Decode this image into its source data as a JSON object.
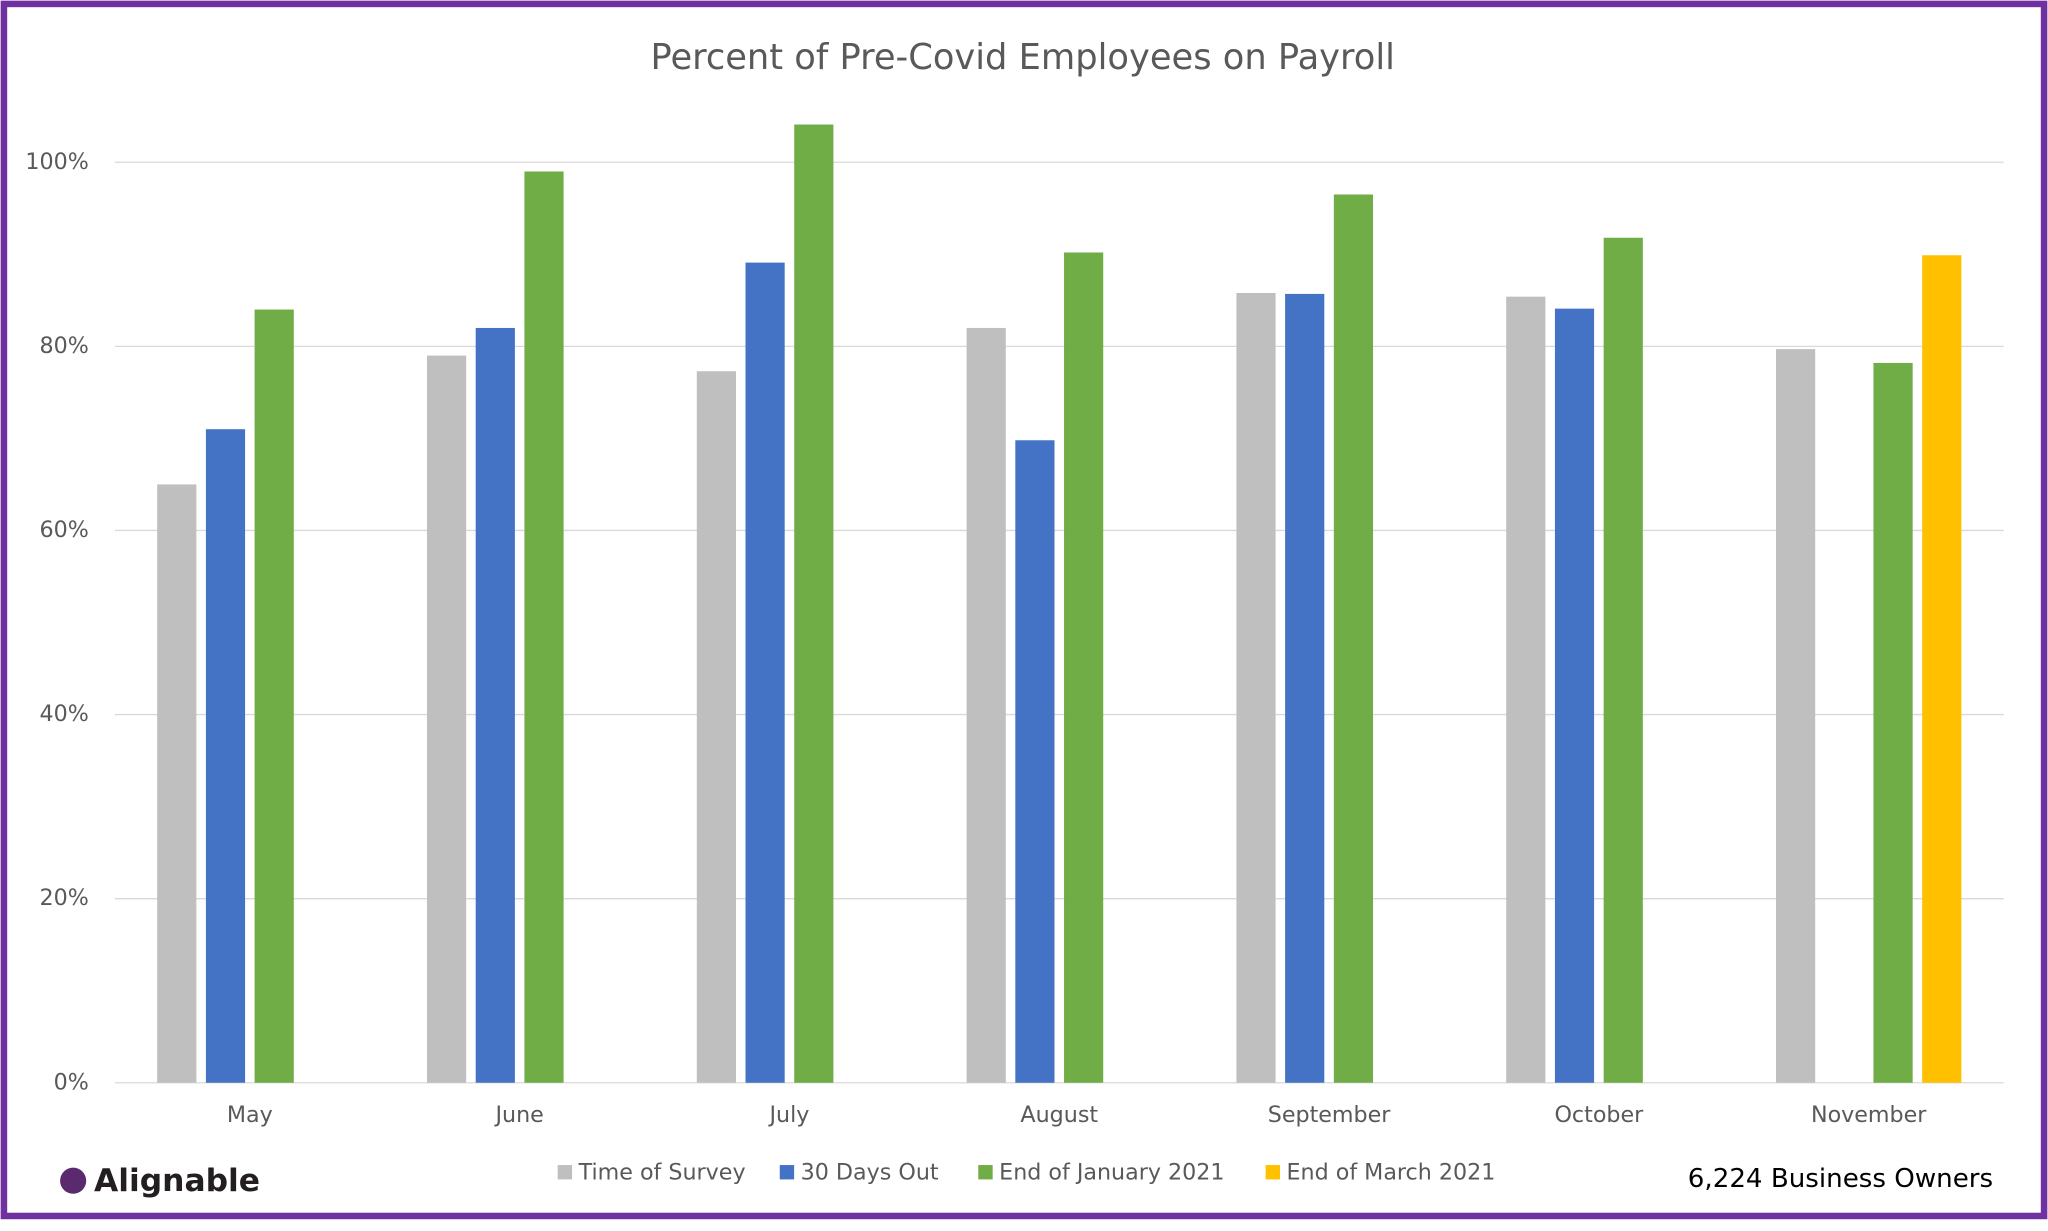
{
  "chart_data": {
    "type": "bar",
    "title": "Percent of Pre-Covid Employees on Payroll",
    "categories": [
      "May",
      "June",
      "July",
      "August",
      "September",
      "October",
      "November"
    ],
    "series": [
      {
        "name": "Time of Survey",
        "color": "#bfbfbf",
        "values": [
          65,
          79,
          77.3,
          82,
          85.8,
          85.4,
          79.7
        ]
      },
      {
        "name": "30 Days Out",
        "color": "#4472c4",
        "values": [
          71,
          82,
          89.1,
          69.8,
          85.7,
          84.1,
          null
        ]
      },
      {
        "name": "End of January 2021",
        "color": "#70ad47",
        "values": [
          84,
          99,
          104.1,
          90.2,
          96.5,
          91.8,
          78.2
        ]
      },
      {
        "name": "End of March 2021",
        "color": "#ffc000",
        "values": [
          null,
          null,
          null,
          null,
          null,
          null,
          89.9
        ]
      }
    ],
    "ylim": [
      0,
      105
    ],
    "yticks": [
      {
        "value": 0,
        "label": "0%"
      },
      {
        "value": 20,
        "label": "20%"
      },
      {
        "value": 40,
        "label": "40%"
      },
      {
        "value": 60,
        "label": "60%"
      },
      {
        "value": 80,
        "label": "80%"
      },
      {
        "value": 100,
        "label": "100%"
      }
    ],
    "grid": true,
    "legend": "bottom",
    "logo": "Alignable",
    "note": "6,224 Business Owners"
  }
}
